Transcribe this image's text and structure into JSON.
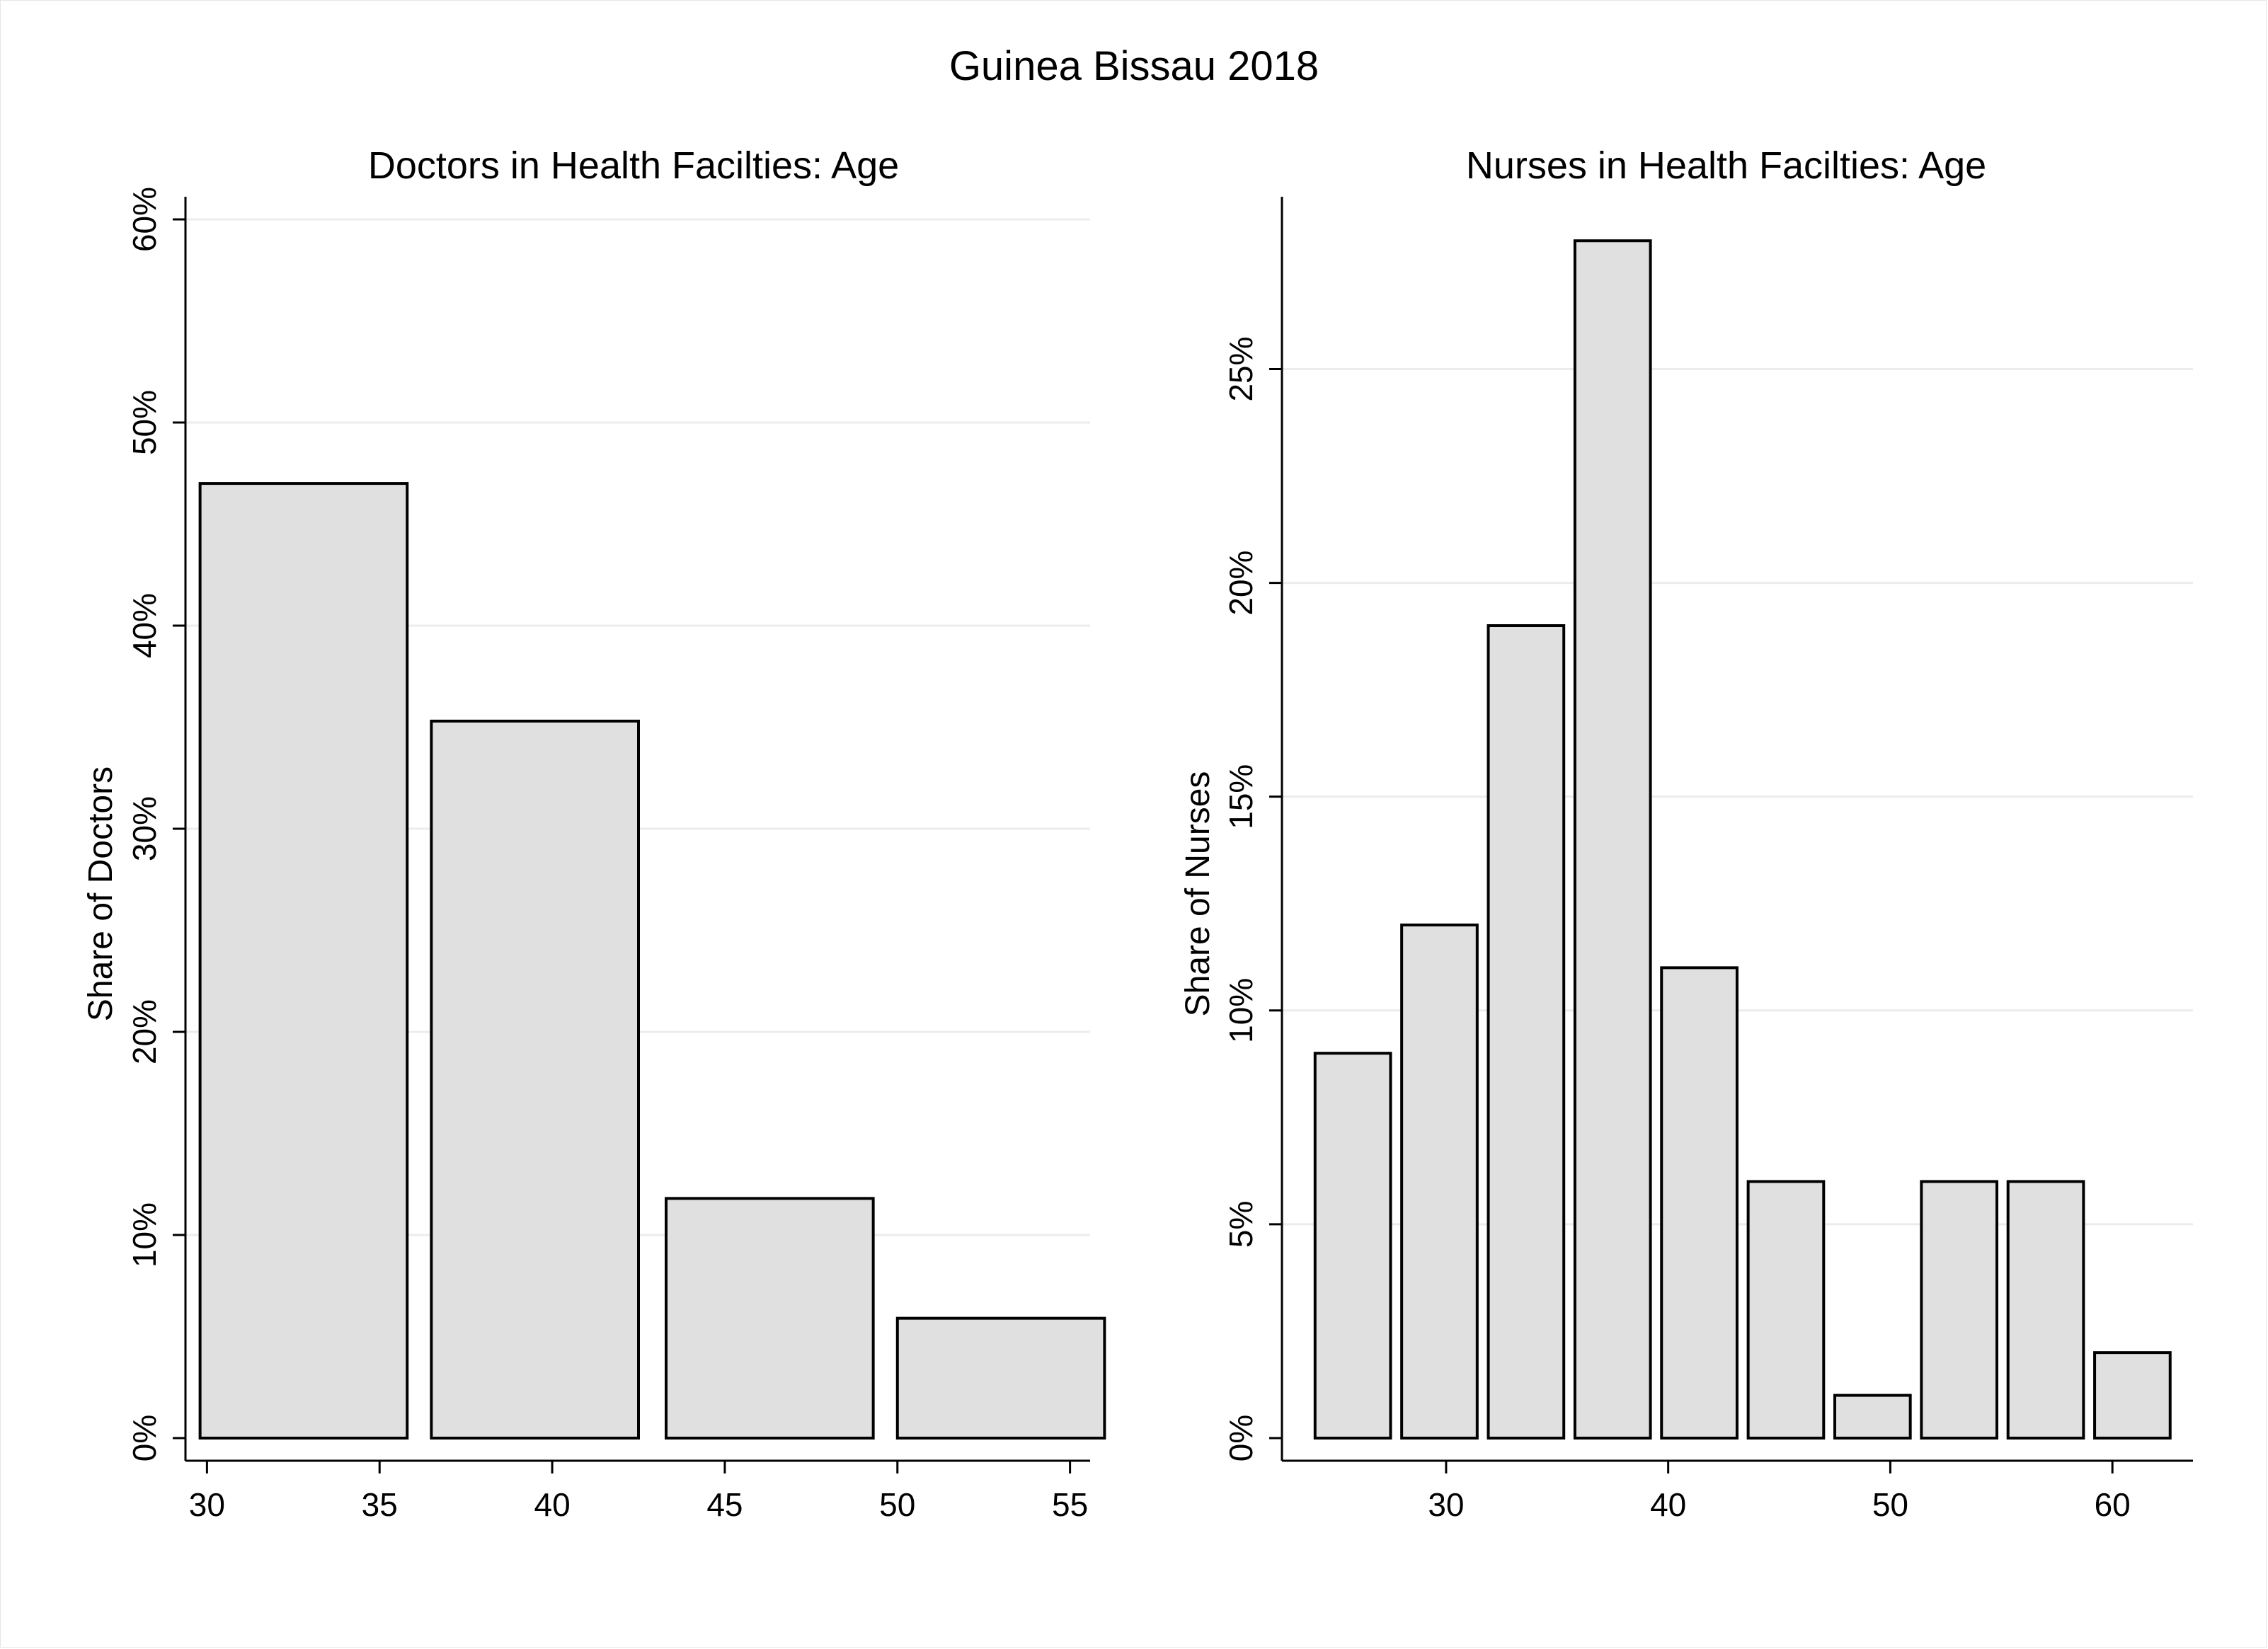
{
  "figure": {
    "title": "Guinea Bissau 2018"
  },
  "chart_data": [
    {
      "type": "bar",
      "title": "Doctors in Health Facilties: Age",
      "xlabel": "",
      "ylabel": "Share of Doctors",
      "xlim": [
        29.5,
        55.5
      ],
      "ylim": [
        0,
        60
      ],
      "x_ticks": [
        30,
        35,
        40,
        45,
        50,
        55
      ],
      "y_ticks": [
        0,
        10,
        20,
        30,
        40,
        50,
        60
      ],
      "y_tick_labels": [
        "0%",
        "10%",
        "20%",
        "30%",
        "40%",
        "50%",
        "60%"
      ],
      "bars": [
        {
          "x_start": 29.8,
          "x_end": 35.8,
          "value": 47.0
        },
        {
          "x_start": 36.5,
          "x_end": 42.5,
          "value": 35.3
        },
        {
          "x_start": 43.3,
          "x_end": 49.3,
          "value": 11.8
        },
        {
          "x_start": 50.0,
          "x_end": 56.0,
          "value": 5.9
        }
      ],
      "grid": true,
      "bar_color": "#e0e0e0"
    },
    {
      "type": "bar",
      "title": "Nurses in Health Facilties: Age",
      "xlabel": "",
      "ylabel": "Share of Nurses",
      "xlim": [
        22.8,
        63.5
      ],
      "ylim": [
        0,
        28.5
      ],
      "x_ticks": [
        30,
        40,
        50,
        60
      ],
      "y_ticks": [
        0,
        5,
        10,
        15,
        20,
        25
      ],
      "y_tick_labels": [
        "0%",
        "5%",
        "10%",
        "15%",
        "20%",
        "25%"
      ],
      "bars": [
        {
          "x_start": 24.1,
          "x_end": 27.5,
          "value": 9.0
        },
        {
          "x_start": 28.0,
          "x_end": 31.4,
          "value": 12.0
        },
        {
          "x_start": 31.9,
          "x_end": 35.3,
          "value": 19.0
        },
        {
          "x_start": 35.8,
          "x_end": 39.2,
          "value": 28.0
        },
        {
          "x_start": 39.7,
          "x_end": 43.1,
          "value": 11.0
        },
        {
          "x_start": 43.6,
          "x_end": 47.0,
          "value": 6.0
        },
        {
          "x_start": 47.5,
          "x_end": 50.9,
          "value": 1.0
        },
        {
          "x_start": 51.4,
          "x_end": 54.8,
          "value": 6.0
        },
        {
          "x_start": 55.3,
          "x_end": 58.7,
          "value": 6.0
        },
        {
          "x_start": 59.2,
          "x_end": 62.6,
          "value": 2.0
        }
      ],
      "grid": true,
      "bar_color": "#e0e0e0"
    }
  ]
}
